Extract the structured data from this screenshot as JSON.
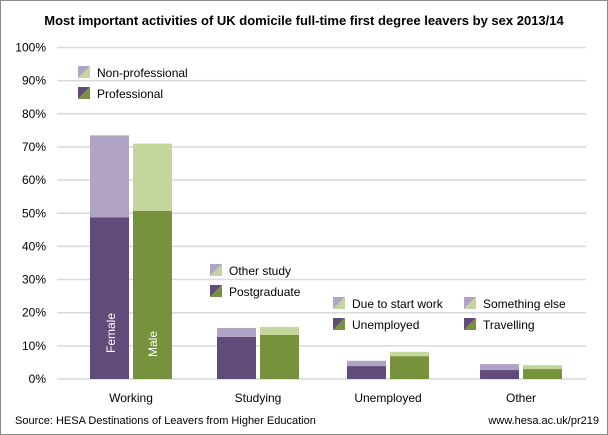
{
  "chart_data": {
    "type": "bar",
    "stacked": true,
    "title": "Most important activities of UK domicile full-time first degree leavers by sex 2013/14",
    "categories": [
      "Working",
      "Studying",
      "Unemployed",
      "Other"
    ],
    "groups": [
      "Female",
      "Male"
    ],
    "ylim": [
      0,
      100
    ],
    "yticks": [
      "0%",
      "10%",
      "20%",
      "30%",
      "40%",
      "50%",
      "60%",
      "70%",
      "80%",
      "90%",
      "100%"
    ],
    "grid": true,
    "colors": {
      "female_lower": "#604b79",
      "female_upper": "#b1a3c5",
      "male_lower": "#76923c",
      "male_upper": "#c3d69b"
    },
    "series": [
      {
        "category": "Working",
        "lower_name": "Professional",
        "upper_name": "Non-professional",
        "female": [
          48.8,
          24.7
        ],
        "male": [
          50.7,
          20.3
        ]
      },
      {
        "category": "Studying",
        "lower_name": "Postgraduate",
        "upper_name": "Other study",
        "female": [
          12.7,
          2.7
        ],
        "male": [
          13.3,
          2.4
        ]
      },
      {
        "category": "Unemployed",
        "lower_name": "Unemployed",
        "upper_name": "Due to start work",
        "female": [
          3.9,
          1.6
        ],
        "male": [
          6.9,
          1.3
        ]
      },
      {
        "category": "Other",
        "lower_name": "Travelling",
        "upper_name": "Something else",
        "female": [
          2.7,
          1.8
        ],
        "male": [
          3.0,
          1.2
        ]
      }
    ],
    "source": "Source: HESA Destinations of Leavers from Higher Education",
    "url": "www.hesa.ac.uk/pr219"
  }
}
